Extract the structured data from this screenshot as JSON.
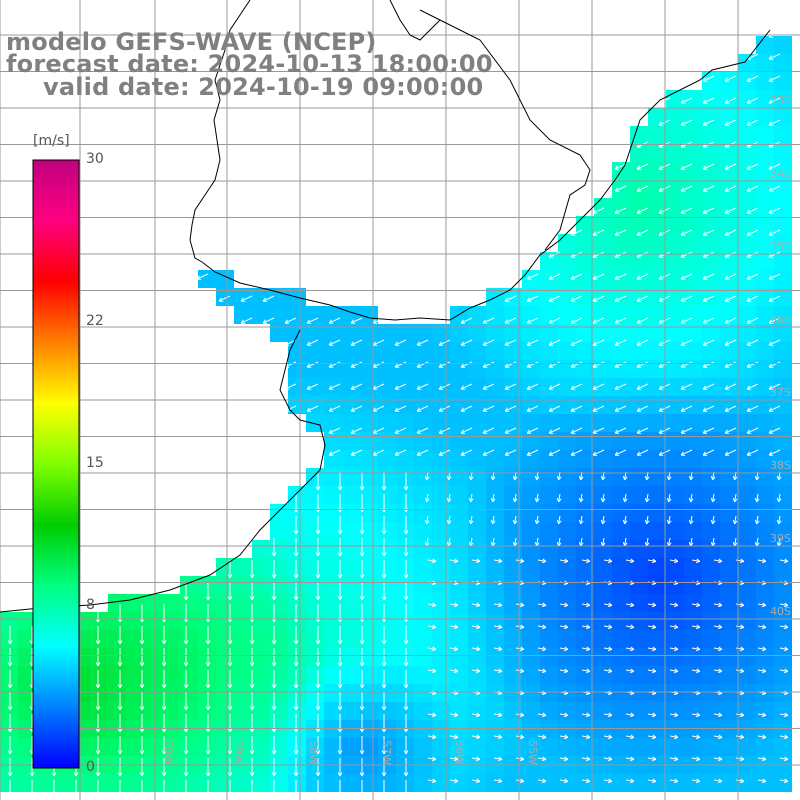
{
  "title": {
    "model": "modelo GEFS-WAVE (NCEP)",
    "forecast_date": "forecast date: 2024-10-13 18:00:00",
    "valid_date": "valid date: 2024-10-19 09:00:00"
  },
  "colorbar": {
    "unit": "[m/s]",
    "ticks": [
      "30",
      "22",
      "15",
      "8",
      "0"
    ],
    "tick_values": [
      30,
      22,
      15,
      8,
      0
    ],
    "min": 0,
    "max": 30,
    "colors": [
      "#0000ff",
      "#0080ff",
      "#00ffff",
      "#00ff80",
      "#00cc00",
      "#80ff00",
      "#ffff00",
      "#ff8000",
      "#ff0000",
      "#ff0080",
      "#c00080"
    ]
  },
  "lat_labels": [
    "33S",
    "34S",
    "35S",
    "36S",
    "37S",
    "38S",
    "39S",
    "40S"
  ],
  "lon_labels": [
    "60W",
    "59W",
    "58W",
    "57W",
    "56W",
    "55W"
  ],
  "colors": {
    "land": "#ffffff",
    "grid": "#999999",
    "coast": "#000000",
    "arrow": "#ffffff",
    "title": "#808080"
  }
}
